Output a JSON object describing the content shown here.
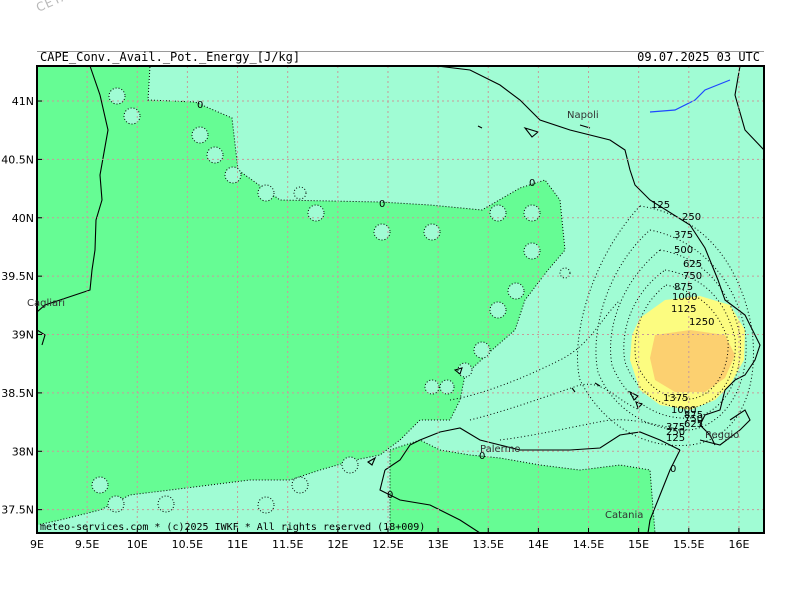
{
  "watermark": "CETA - Inst.",
  "header": {
    "title": "CAPE_Conv._Avail._Pot._Energy_[J/kg]",
    "datetime": "09.07.2025 03 UTC"
  },
  "map": {
    "lon_range": [
      9,
      16.25
    ],
    "lat_range": [
      37.3,
      41.3
    ],
    "x_ticks": [
      "9E",
      "9.5E",
      "10E",
      "10.5E",
      "11E",
      "11.5E",
      "12E",
      "12.5E",
      "13E",
      "13.5E",
      "14E",
      "14.5E",
      "15E",
      "15.5E",
      "16E"
    ],
    "y_ticks": [
      "41N",
      "40.5N",
      "40N",
      "39.5N",
      "39N",
      "38.5N",
      "38N",
      "37.5N"
    ],
    "grid": "dotted",
    "colors": {
      "cape_0": "#66fc94",
      "cape_low": "#a0fcd4",
      "cape_500": "#fcfc80",
      "cape_1250": "#fcd070",
      "coast": "#000000",
      "river": "#1e48ff",
      "grid": "#c8a0a0"
    },
    "cities": [
      "Napoli",
      "Cagliari",
      "Palermo",
      "Reggio",
      "Catania"
    ],
    "contour_labels": [
      "0",
      "0",
      "0",
      "0",
      "0",
      "0",
      "0",
      "125",
      "250",
      "375",
      "500",
      "625",
      "750",
      "875",
      "1000",
      "1125",
      "1250",
      "1375",
      "1000",
      "875",
      "750",
      "625",
      "500",
      "375",
      "250",
      "125"
    ],
    "credit": "meteo-services.com * (c)2025 IWKF * All rights reserved (18+009)"
  }
}
